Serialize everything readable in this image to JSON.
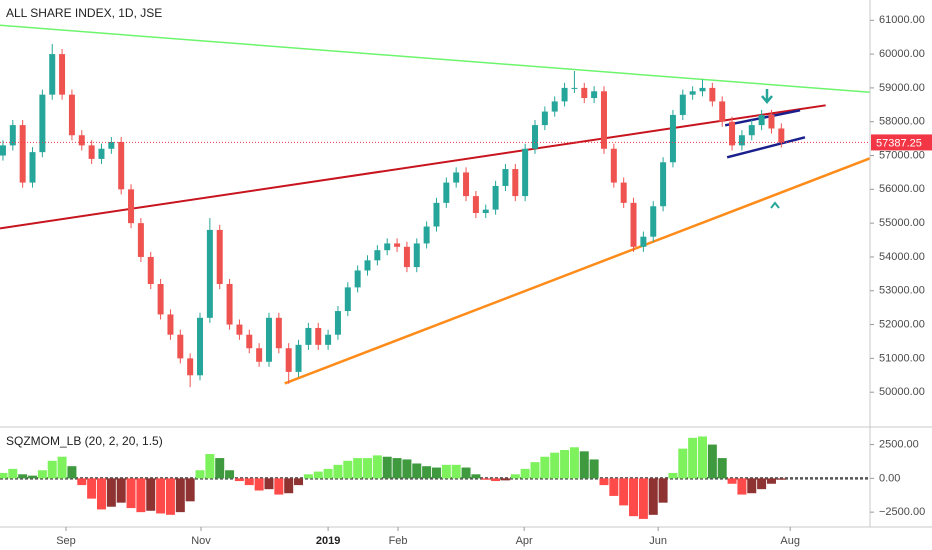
{
  "chart_data": [
    {
      "type": "candlestick",
      "title": "ALL SHARE INDEX, 1D, JSE",
      "up_color": "#26a69a",
      "down_color": "#ef5350",
      "xlim": [
        -0.3,
        88.0
      ],
      "ylim": [
        49000,
        61600
      ],
      "yticks": [
        {
          "value": 50000,
          "label": "50000.00"
        },
        {
          "value": 51000,
          "label": "51000.00"
        },
        {
          "value": 52000,
          "label": "52000.00"
        },
        {
          "value": 53000,
          "label": "53000.00"
        },
        {
          "value": 54000,
          "label": "54000.00"
        },
        {
          "value": 55000,
          "label": "55000.00"
        },
        {
          "value": 56000,
          "label": "56000.00"
        },
        {
          "value": 57000,
          "label": "57000.00"
        },
        {
          "value": 58000,
          "label": "58000.00"
        },
        {
          "value": 59000,
          "label": "59000.00"
        },
        {
          "value": 60000,
          "label": "60000.00"
        },
        {
          "value": 61000,
          "label": "61000.00"
        }
      ],
      "last_price_color": "#f23645",
      "open": [
        57000,
        57300,
        57900,
        56200,
        57100,
        58800,
        60000,
        58800,
        57600,
        57300,
        56900,
        57200,
        57400,
        56000,
        55000,
        54000,
        53200,
        52300,
        51700,
        51000,
        50500,
        52200,
        54800,
        53200,
        52000,
        51700,
        51300,
        50900,
        52200,
        51300,
        50600,
        51400,
        51900,
        51400,
        51700,
        52400,
        53100,
        53600,
        53900,
        54200,
        54400,
        54300,
        53700,
        54400,
        54900,
        55600,
        56200,
        56500,
        55800,
        55300,
        55400,
        56100,
        56600,
        55800,
        57200,
        57900,
        58300,
        58600,
        59000,
        59000,
        58700,
        58900,
        57200,
        56200,
        55600,
        54300,
        54600,
        55500,
        56800,
        58200,
        58800,
        58900,
        59000,
        58600,
        58000,
        57300,
        57600,
        57900,
        58200,
        57800
      ],
      "high": [
        57450,
        58050,
        58050,
        57250,
        58950,
        60300,
        60150,
        58950,
        57750,
        57450,
        57350,
        57550,
        57550,
        56150,
        55150,
        54150,
        53350,
        52450,
        51850,
        51150,
        52350,
        55150,
        54950,
        53350,
        52150,
        51850,
        51450,
        52350,
        52350,
        51450,
        51550,
        52050,
        52050,
        51850,
        52550,
        53250,
        53750,
        54050,
        54350,
        54550,
        54550,
        54450,
        54550,
        55050,
        55750,
        56350,
        56650,
        56650,
        55950,
        55550,
        56250,
        56750,
        56750,
        57350,
        58050,
        58450,
        58750,
        59150,
        59500,
        59150,
        59050,
        59050,
        57350,
        56350,
        55750,
        54750,
        55650,
        56950,
        58350,
        58950,
        59050,
        59250,
        59150,
        58750,
        58150,
        57750,
        58050,
        58350,
        58350,
        57950
      ],
      "low": [
        56850,
        57150,
        56050,
        56050,
        56950,
        58650,
        58650,
        57450,
        57150,
        56750,
        56750,
        57050,
        55850,
        54850,
        53850,
        53050,
        52150,
        51550,
        50850,
        50150,
        50350,
        52050,
        53050,
        51850,
        51550,
        51150,
        50750,
        50750,
        51150,
        50250,
        50450,
        51250,
        51250,
        51250,
        51550,
        52250,
        52950,
        53450,
        53750,
        54050,
        54150,
        53550,
        53550,
        54250,
        54750,
        55450,
        56050,
        55650,
        55150,
        55150,
        55250,
        55950,
        55650,
        55650,
        57050,
        57750,
        58150,
        58450,
        58850,
        58550,
        58550,
        57050,
        56050,
        55450,
        54150,
        54150,
        54450,
        55350,
        56650,
        58050,
        58650,
        58750,
        58450,
        57850,
        57150,
        57150,
        57450,
        57750,
        57650,
        57237
      ],
      "close": [
        57300,
        57900,
        56200,
        57100,
        58800,
        60000,
        58800,
        57600,
        57300,
        56900,
        57200,
        57400,
        56000,
        55000,
        54000,
        53200,
        52300,
        51700,
        51000,
        50500,
        52200,
        54800,
        53200,
        52000,
        51700,
        51300,
        50900,
        52200,
        51300,
        50600,
        51400,
        51900,
        51400,
        51700,
        52400,
        53100,
        53600,
        53900,
        54200,
        54400,
        54300,
        53700,
        54400,
        54900,
        55600,
        56200,
        56500,
        55800,
        55300,
        55400,
        56100,
        56600,
        55800,
        57200,
        57900,
        58300,
        58600,
        59000,
        59000,
        58700,
        58900,
        57200,
        56200,
        55600,
        54300,
        54600,
        55500,
        56800,
        58200,
        58800,
        58900,
        59000,
        58600,
        58000,
        57300,
        57600,
        57900,
        58200,
        57800,
        57387.25
      ],
      "trend_lines": [
        {
          "color": "#6cf56c",
          "width": 1.5,
          "x": [
            -0.3,
            88.0
          ],
          "y": [
            60852,
            58870
          ]
        },
        {
          "color": "#c8141e",
          "width": 2,
          "x": [
            -0.3,
            83.5
          ],
          "y": [
            54846,
            58485
          ]
        },
        {
          "color": "#ff8c1a",
          "width": 2.5,
          "x": [
            28.6,
            88.0
          ],
          "y": [
            50260,
            56917
          ]
        },
        {
          "color": "#1a1f8c",
          "width": 2.5,
          "x": [
            73.3,
            80.9
          ],
          "y": [
            57893,
            58337
          ]
        },
        {
          "color": "#1a1f8c",
          "width": 2.5,
          "x": [
            73.5,
            81.4
          ],
          "y": [
            56947,
            57538
          ]
        }
      ]
    },
    {
      "type": "momentum-histogram",
      "title": "SQZMOM_LB (20, 2, 20, 1.5)",
      "colors": {
        "rising_positive": "#7ef25c",
        "falling_positive": "#3f9a3f",
        "falling_negative": "#ff4a4a",
        "rising_negative": "#8e3232"
      },
      "xlim": [
        -0.3,
        88.0
      ],
      "ylim": [
        -3600,
        3800
      ],
      "yticks": [
        {
          "value": 2500,
          "label": "2500.00"
        },
        {
          "value": 0,
          "label": "0.00"
        },
        {
          "value": -2500,
          "label": "−2500.00"
        }
      ],
      "xticks": [
        {
          "value": 6.4,
          "label": "Sep"
        },
        {
          "value": 20.1,
          "label": "Nov"
        },
        {
          "value": 33,
          "label": "2019"
        },
        {
          "value": 40.1,
          "label": "Feb"
        },
        {
          "value": 52.9,
          "label": "Apr"
        },
        {
          "value": 66.5,
          "label": "Jun"
        },
        {
          "value": 79.9,
          "label": "Aug"
        }
      ],
      "values": [
        400,
        700,
        300,
        200,
        600,
        1300,
        1600,
        900,
        -500,
        -1500,
        -2300,
        -2100,
        -1800,
        -2200,
        -2500,
        -2400,
        -2600,
        -2700,
        -2500,
        -1700,
        600,
        1800,
        1500,
        600,
        -200,
        -500,
        -900,
        -800,
        -1200,
        -1100,
        -500,
        300,
        500,
        700,
        1000,
        1300,
        1500,
        1500,
        1700,
        1600,
        1500,
        1400,
        1100,
        900,
        800,
        1000,
        1000,
        800,
        300,
        -100,
        -200,
        -150,
        300,
        700,
        1200,
        1600,
        1900,
        2100,
        2300,
        2000,
        1400,
        -500,
        -1300,
        -2000,
        -2800,
        -3000,
        -2700,
        -1800,
        400,
        2200,
        3000,
        3100,
        2500,
        1500,
        -400,
        -1200,
        -1100,
        -800,
        -400,
        -100
      ]
    }
  ]
}
